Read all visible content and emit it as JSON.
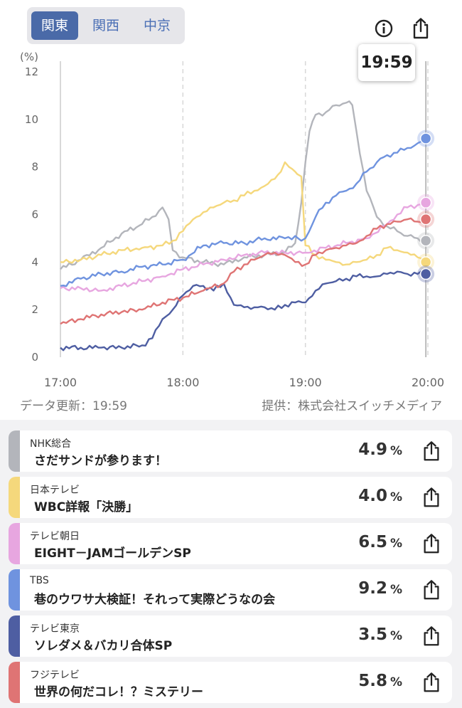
{
  "region_tabs": [
    {
      "label": "関東",
      "active": true
    },
    {
      "label": "関西",
      "active": false
    },
    {
      "label": "中京",
      "active": false
    }
  ],
  "icons": {
    "info": "info-icon",
    "share": "share-icon"
  },
  "tooltip_time": "19:59",
  "footer": {
    "updated": "データ更新：19:59",
    "provider": "提供：株式会社スイッチメディア"
  },
  "chart_data": {
    "type": "line",
    "ylabel": "(%)",
    "ylim": [
      0,
      12
    ],
    "yticks": [
      0,
      2,
      4,
      6,
      8,
      10,
      12
    ],
    "xlim": [
      0,
      180
    ],
    "xticks": [
      {
        "pos": 0,
        "label": "17:00"
      },
      {
        "pos": 60,
        "label": "18:00"
      },
      {
        "pos": 120,
        "label": "19:00"
      },
      {
        "pos": 180,
        "label": "20:00"
      }
    ],
    "cursor_pos": 179,
    "series": [
      {
        "name": "NHK総合",
        "color": "#b3b5bb",
        "x": [
          0,
          10,
          20,
          30,
          40,
          45,
          50,
          53,
          55,
          60,
          70,
          80,
          90,
          100,
          110,
          115,
          118,
          120,
          122,
          125,
          130,
          135,
          140,
          143,
          145,
          150,
          155,
          160,
          165,
          170,
          175,
          180
        ],
        "values": [
          3.7,
          4.1,
          4.6,
          5.2,
          5.6,
          5.9,
          6.3,
          5.8,
          4.5,
          4.2,
          4.0,
          3.9,
          4.2,
          4.3,
          4.4,
          4.8,
          6.5,
          8.2,
          9.5,
          10.2,
          10.3,
          10.6,
          10.7,
          10.6,
          9.5,
          7.0,
          5.9,
          5.5,
          5.3,
          5.1,
          5.0,
          4.9
        ]
      },
      {
        "name": "日本テレビ",
        "color": "#f5d87c",
        "x": [
          0,
          10,
          20,
          30,
          40,
          50,
          55,
          60,
          65,
          70,
          75,
          80,
          85,
          90,
          95,
          100,
          105,
          108,
          110,
          112,
          115,
          116,
          118,
          120,
          125,
          130,
          135,
          140,
          145,
          150,
          155,
          160,
          165,
          170,
          175,
          180
        ],
        "values": [
          4.0,
          4.1,
          4.3,
          4.5,
          4.6,
          4.7,
          4.9,
          5.3,
          5.8,
          6.1,
          6.3,
          6.5,
          6.6,
          6.8,
          7.0,
          7.2,
          7.5,
          7.8,
          8.2,
          8.0,
          7.8,
          7.7,
          7.6,
          4.7,
          4.3,
          4.1,
          4.0,
          3.9,
          4.0,
          4.1,
          4.3,
          4.6,
          4.5,
          4.4,
          4.2,
          4.0
        ]
      },
      {
        "name": "テレビ朝日",
        "color": "#e7a6e0",
        "x": [
          0,
          10,
          20,
          30,
          40,
          50,
          60,
          70,
          80,
          90,
          100,
          110,
          120,
          130,
          140,
          150,
          160,
          165,
          170,
          175,
          180
        ],
        "values": [
          2.9,
          2.9,
          2.8,
          3.0,
          3.2,
          3.4,
          3.7,
          3.9,
          4.1,
          4.3,
          4.4,
          4.4,
          4.4,
          4.6,
          4.8,
          5.0,
          5.6,
          6.0,
          6.3,
          6.4,
          6.5
        ]
      },
      {
        "name": "TBS",
        "color": "#6f93df",
        "x": [
          0,
          10,
          20,
          30,
          40,
          50,
          60,
          70,
          80,
          90,
          100,
          110,
          115,
          118,
          120,
          125,
          130,
          135,
          140,
          145,
          150,
          155,
          160,
          165,
          170,
          175,
          180
        ],
        "values": [
          3.0,
          3.3,
          3.5,
          3.6,
          3.8,
          3.9,
          4.1,
          4.7,
          4.8,
          4.8,
          5.0,
          5.0,
          5.1,
          4.9,
          5.0,
          5.9,
          6.5,
          6.8,
          7.0,
          7.3,
          7.8,
          8.2,
          8.5,
          8.6,
          8.8,
          9.0,
          9.2
        ]
      },
      {
        "name": "テレビ東京",
        "color": "#4e5ea2",
        "x": [
          0,
          10,
          20,
          30,
          40,
          45,
          50,
          55,
          60,
          65,
          70,
          75,
          80,
          85,
          90,
          95,
          100,
          105,
          110,
          115,
          120,
          125,
          130,
          135,
          140,
          145,
          150,
          155,
          160,
          165,
          170,
          175,
          180
        ],
        "values": [
          0.4,
          0.4,
          0.4,
          0.4,
          0.5,
          0.8,
          1.6,
          2.0,
          2.6,
          3.0,
          3.0,
          2.8,
          3.1,
          2.2,
          2.1,
          2.1,
          2.1,
          2.0,
          2.2,
          2.3,
          2.3,
          2.8,
          3.1,
          3.2,
          3.3,
          3.4,
          3.4,
          3.4,
          3.5,
          3.6,
          3.5,
          3.5,
          3.5
        ]
      },
      {
        "name": "フジテレビ",
        "color": "#df7474",
        "x": [
          0,
          10,
          20,
          30,
          40,
          50,
          60,
          70,
          80,
          85,
          90,
          95,
          100,
          105,
          110,
          115,
          120,
          125,
          130,
          135,
          140,
          145,
          150,
          155,
          160,
          165,
          170,
          175,
          180
        ],
        "values": [
          1.4,
          1.6,
          1.8,
          1.9,
          2.0,
          2.3,
          2.5,
          2.8,
          3.1,
          3.6,
          3.9,
          4.1,
          4.3,
          4.4,
          4.3,
          4.0,
          3.9,
          4.3,
          4.5,
          4.6,
          4.7,
          4.8,
          5.1,
          5.4,
          5.6,
          5.7,
          5.8,
          5.7,
          5.8
        ]
      }
    ]
  },
  "ratings": [
    {
      "channel": "NHK総合",
      "program": "さだサンドが参ります！",
      "value": "4.9",
      "unit": "%",
      "color": "#b3b5bb"
    },
    {
      "channel": "日本テレビ",
      "program": "WBC詳報「決勝」",
      "value": "4.0",
      "unit": "%",
      "color": "#f5d87c"
    },
    {
      "channel": "テレビ朝日",
      "program": "EIGHT－JAMゴールデンSP",
      "value": "6.5",
      "unit": "%",
      "color": "#e7a6e0"
    },
    {
      "channel": "TBS",
      "program": "巷のウワサ大検証！それって実際どうなの会",
      "value": "9.2",
      "unit": "%",
      "color": "#6f93df"
    },
    {
      "channel": "テレビ東京",
      "program": "ソレダメ＆バカリ合体SP",
      "value": "3.5",
      "unit": "%",
      "color": "#4e5ea2"
    },
    {
      "channel": "フジテレビ",
      "program": "世界の何だコレ！？ミステリー",
      "value": "5.8",
      "unit": "%",
      "color": "#df7474"
    }
  ]
}
